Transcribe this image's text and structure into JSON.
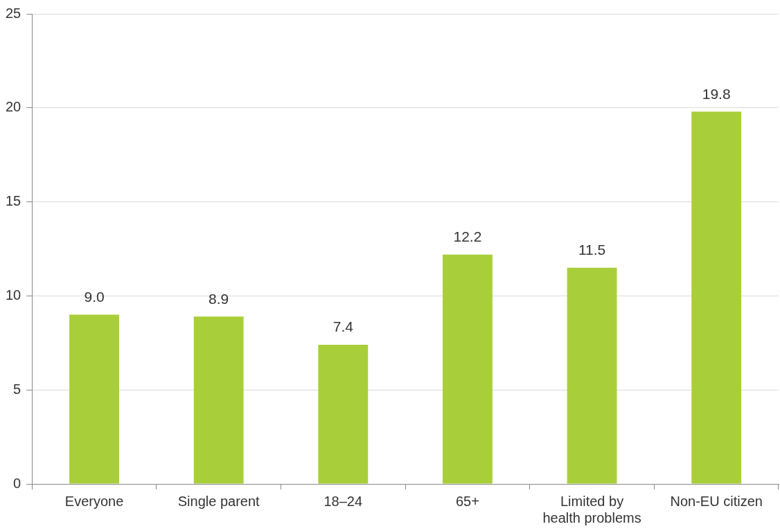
{
  "chart_data": {
    "type": "bar",
    "categories": [
      "Everyone",
      "Single parent",
      "18–24",
      "65+",
      "Limited by health problems",
      "Non-EU citizen"
    ],
    "values": [
      9.0,
      8.9,
      7.4,
      12.2,
      11.5,
      19.8
    ],
    "value_labels": [
      "9.0",
      "8.9",
      "7.4",
      "12.2",
      "11.5",
      "19.8"
    ],
    "color": "#a8cf3a",
    "ylim": [
      0,
      25
    ],
    "yticks": [
      0,
      5,
      10,
      15,
      20,
      25
    ],
    "grid": "y"
  }
}
